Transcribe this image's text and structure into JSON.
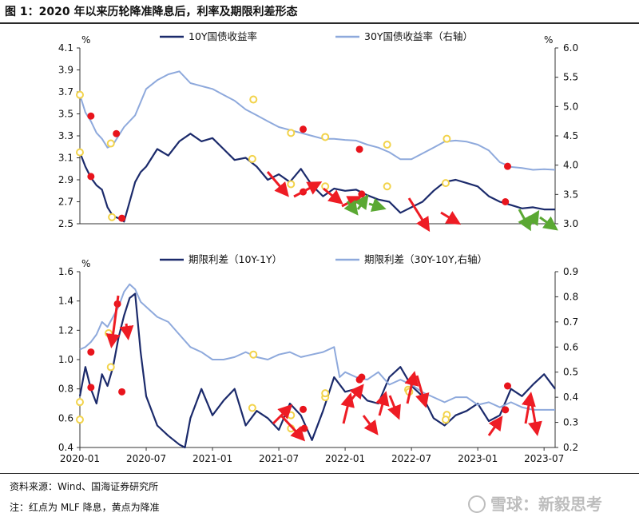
{
  "figure": {
    "title": "图 1：2020 年以来历轮降准降息后，利率及期限利差形态",
    "source": "资料来源：Wind、国海证券研究所",
    "note": "注：红点为 MLF 降息，黄点为降准",
    "watermark": "雪球：新毅思考"
  },
  "colors": {
    "dark_series": "#1b2a6b",
    "light_series": "#8ea9dc",
    "mlf_cut_dot": "#e8141c",
    "rrr_cut_dot": "#f2d34b",
    "red_arrow": "#ee1c24",
    "green_arrow": "#5aa832"
  },
  "chart_data": [
    {
      "type": "line",
      "unit_left": "%",
      "unit_right": "%",
      "ylim": [
        2.5,
        4.1
      ],
      "y2lim": [
        3.0,
        6.0
      ],
      "y_ticks": [
        "2.5",
        "2.7",
        "2.9",
        "3.1",
        "3.3",
        "3.5",
        "3.7",
        "3.9",
        "4.1"
      ],
      "y2_ticks": [
        "3.0",
        "3.5",
        "4.0",
        "4.5",
        "5.0",
        "5.5",
        "6.0"
      ],
      "series": [
        {
          "name": "10Y国债收益率",
          "axis": "left",
          "x": [
            0,
            0.5,
            1,
            1.5,
            2,
            2.5,
            3,
            3.5,
            4,
            4.5,
            5,
            5.5,
            6,
            7,
            8,
            9,
            10,
            11,
            12,
            13,
            14,
            15,
            16,
            17,
            18,
            19,
            20,
            21,
            22,
            23,
            24,
            25,
            26,
            27,
            28,
            29,
            30,
            31,
            32,
            33,
            34,
            35,
            36,
            37,
            38,
            39,
            40,
            41,
            42,
            43
          ],
          "values": [
            3.15,
            3.02,
            2.92,
            2.85,
            2.81,
            2.65,
            2.57,
            2.55,
            2.52,
            2.7,
            2.88,
            2.97,
            3.02,
            3.18,
            3.12,
            3.25,
            3.32,
            3.25,
            3.28,
            3.18,
            3.08,
            3.1,
            3.02,
            2.9,
            2.95,
            2.88,
            3.0,
            2.85,
            2.75,
            2.82,
            2.8,
            2.81,
            2.76,
            2.72,
            2.7,
            2.6,
            2.65,
            2.7,
            2.8,
            2.88,
            2.9,
            2.87,
            2.84,
            2.75,
            2.7,
            2.67,
            2.64,
            2.65,
            2.63,
            2.63
          ]
        },
        {
          "name": "30Y国债收益率（右轴）",
          "axis": "right",
          "x": [
            0,
            0.5,
            1,
            1.5,
            2,
            2.5,
            3,
            3.5,
            4,
            5,
            6,
            7,
            8,
            9,
            10,
            11,
            12,
            13,
            14,
            15,
            16,
            17,
            18,
            19,
            20,
            21,
            22,
            23,
            24,
            25,
            26,
            27,
            28,
            29,
            30,
            31,
            32,
            33,
            34,
            35,
            36,
            37,
            38,
            39,
            40,
            41,
            42,
            43
          ],
          "values": [
            5.2,
            4.9,
            4.75,
            4.55,
            4.45,
            4.3,
            4.35,
            4.5,
            4.65,
            4.85,
            5.3,
            5.45,
            5.55,
            5.6,
            5.4,
            5.35,
            5.3,
            5.2,
            5.1,
            4.95,
            4.85,
            4.75,
            4.65,
            4.6,
            4.55,
            4.5,
            4.45,
            4.45,
            4.43,
            4.42,
            4.35,
            4.3,
            4.22,
            4.1,
            4.1,
            4.2,
            4.3,
            4.4,
            4.42,
            4.4,
            4.35,
            4.25,
            4.05,
            3.97,
            3.95,
            3.92,
            3.93,
            3.92
          ]
        }
      ],
      "mlf_cut_points": [
        [
          1,
          3.48
        ],
        [
          1,
          2.93
        ],
        [
          3.3,
          3.32
        ],
        [
          3.8,
          2.55
        ],
        [
          20.2,
          3.36
        ],
        [
          20.2,
          2.79
        ],
        [
          25.3,
          4.27
        ],
        [
          25.5,
          2.77
        ],
        [
          38.5,
          2.7
        ],
        [
          38.7,
          3.98
        ]
      ],
      "rrr_cut_points": [
        [
          0,
          5.2
        ],
        [
          0,
          3.15
        ],
        [
          2.8,
          4.37
        ],
        [
          2.9,
          2.56
        ],
        [
          15.7,
          5.12
        ],
        [
          15.6,
          3.09
        ],
        [
          19.1,
          4.55
        ],
        [
          19.1,
          2.86
        ],
        [
          22.2,
          4.48
        ],
        [
          22.2,
          2.84
        ],
        [
          27.8,
          4.35
        ],
        [
          27.8,
          2.84
        ],
        [
          33.2,
          4.45
        ],
        [
          33.1,
          2.87
        ]
      ]
    },
    {
      "type": "line",
      "unit_left": "%",
      "ylim": [
        0.4,
        1.6
      ],
      "y2lim": [
        0.2,
        0.9
      ],
      "y_ticks": [
        "0.4",
        "0.6",
        "0.8",
        "1.0",
        "1.2",
        "1.4",
        "1.6"
      ],
      "y2_ticks": [
        "0.2",
        "0.3",
        "0.4",
        "0.5",
        "0.6",
        "0.7",
        "0.8",
        "0.9"
      ],
      "x_ticks": [
        "2020-01",
        "2020-07",
        "2021-01",
        "2021-07",
        "2022-01",
        "2022-07",
        "2023-01",
        "2023-07"
      ],
      "series": [
        {
          "name": "期限利差（10Y-1Y）",
          "axis": "left",
          "x": [
            0,
            0.5,
            1,
            1.5,
            2,
            2.5,
            3,
            3.5,
            4,
            4.5,
            5,
            5.5,
            6,
            7,
            8,
            9,
            9.5,
            10,
            11,
            12,
            13,
            14,
            15,
            16,
            17,
            18,
            19,
            20,
            21,
            22,
            23,
            24,
            25,
            26,
            27,
            28,
            29,
            30,
            31,
            32,
            33,
            34,
            35,
            36,
            37,
            38,
            39,
            40,
            41,
            42,
            43
          ],
          "values": [
            0.75,
            0.95,
            0.8,
            0.7,
            0.9,
            0.82,
            0.95,
            1.15,
            1.3,
            1.42,
            1.45,
            1.05,
            0.75,
            0.55,
            0.48,
            0.42,
            0.4,
            0.6,
            0.8,
            0.62,
            0.72,
            0.8,
            0.55,
            0.65,
            0.6,
            0.52,
            0.7,
            0.62,
            0.45,
            0.65,
            0.88,
            0.78,
            0.8,
            0.72,
            0.7,
            0.88,
            0.95,
            0.82,
            0.75,
            0.6,
            0.55,
            0.62,
            0.65,
            0.7,
            0.58,
            0.62,
            0.8,
            0.75,
            0.83,
            0.9,
            0.8
          ]
        },
        {
          "name": "期限利差（30Y-10Y,右轴）",
          "axis": "right",
          "x": [
            0,
            0.5,
            1,
            1.5,
            2,
            2.5,
            3,
            3.5,
            4,
            4.5,
            5,
            5.5,
            6,
            7,
            8,
            9,
            10,
            11,
            12,
            13,
            14,
            15,
            16,
            17,
            18,
            19,
            20,
            21,
            22,
            23,
            23.5,
            24,
            25,
            26,
            27,
            28,
            29,
            30,
            31,
            32,
            33,
            34,
            35,
            36,
            37,
            38,
            39,
            40,
            41,
            42,
            43
          ],
          "values": [
            0.59,
            0.6,
            0.62,
            0.65,
            0.7,
            0.68,
            0.72,
            0.76,
            0.82,
            0.85,
            0.83,
            0.78,
            0.76,
            0.72,
            0.7,
            0.65,
            0.6,
            0.58,
            0.55,
            0.55,
            0.56,
            0.58,
            0.56,
            0.55,
            0.57,
            0.58,
            0.56,
            0.57,
            0.58,
            0.6,
            0.48,
            0.5,
            0.48,
            0.47,
            0.5,
            0.45,
            0.47,
            0.45,
            0.42,
            0.4,
            0.38,
            0.4,
            0.4,
            0.37,
            0.38,
            0.36,
            0.38,
            0.36,
            0.35,
            0.35,
            0.35
          ]
        }
      ],
      "mlf_cut_points": [
        [
          1,
          0.58
        ],
        [
          1,
          0.81
        ],
        [
          3.4,
          1.38
        ],
        [
          3.8,
          0.78
        ],
        [
          20.2,
          0.66
        ],
        [
          20.3,
          0.53
        ],
        [
          25.3,
          0.47
        ],
        [
          25.5,
          0.88
        ],
        [
          38.5,
          0.35
        ],
        [
          38.7,
          0.82
        ]
      ],
      "rrr_cut_points": [
        [
          0,
          0.59
        ],
        [
          0,
          0.71
        ],
        [
          2.6,
          1.18
        ],
        [
          2.8,
          0.52
        ],
        [
          15.7,
          0.57
        ],
        [
          15.6,
          0.67
        ],
        [
          19.1,
          0.53
        ],
        [
          19.1,
          0.62
        ],
        [
          22.2,
          0.4
        ],
        [
          22.2,
          0.77
        ],
        [
          29.7,
          0.43
        ],
        [
          29.8,
          0.78
        ],
        [
          33.2,
          0.33
        ],
        [
          33.1,
          0.59
        ]
      ]
    }
  ]
}
